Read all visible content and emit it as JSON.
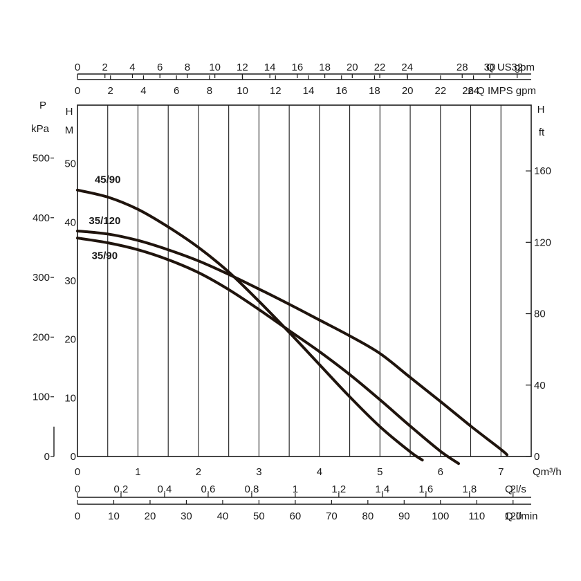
{
  "chart_data": {
    "type": "line",
    "x_main": {
      "unit_label": "Qm³/h",
      "range": [
        0,
        7.5
      ],
      "ticks": [
        0,
        1,
        2,
        3,
        4,
        5,
        6,
        7
      ]
    },
    "y_head_m": {
      "label_top": "H",
      "label_unit": "M",
      "range": [
        0,
        60
      ],
      "ticks": [
        0,
        10,
        20,
        30,
        40,
        50
      ]
    },
    "y_pressure_kpa": {
      "label_top": "P",
      "label_unit": "kPa",
      "ticks": [
        0,
        100,
        200,
        300,
        400,
        500
      ],
      "tick_labels": [
        "0",
        "100",
        "200",
        "300",
        "400",
        "500"
      ]
    },
    "y_head_ft": {
      "label_top": "H",
      "label_unit": "ft",
      "ticks": [
        0,
        40,
        80,
        120,
        160
      ],
      "tick_labels": [
        "0",
        "40",
        "80",
        "120",
        "160"
      ]
    },
    "top_axes": [
      {
        "name": "Q US gpm",
        "unit_label": "Q US gpm",
        "ticks": [
          0,
          2,
          4,
          6,
          8,
          10,
          12,
          14,
          16,
          18,
          20,
          22,
          24,
          28,
          30,
          32
        ],
        "tick_labels": [
          "0",
          "2",
          "4",
          "6",
          "8",
          "10",
          "12",
          "14",
          "16",
          "18",
          "20",
          "22",
          "24",
          "28",
          "30",
          "32"
        ]
      },
      {
        "name": "Q IMPS gpm",
        "unit_label": "26 Q IMPS gpm",
        "ticks": [
          0,
          2,
          4,
          6,
          8,
          10,
          12,
          14,
          16,
          18,
          20,
          22,
          24
        ],
        "tick_labels": [
          "0",
          "2",
          "4",
          "6",
          "8",
          "10",
          "12",
          "14",
          "16",
          "18",
          "20",
          "22",
          "24"
        ]
      }
    ],
    "bottom_axes": [
      {
        "name": "Q l/s",
        "unit_label": "Q l/s",
        "ticks": [
          0,
          0.2,
          0.4,
          0.6,
          0.8,
          1,
          1.2,
          1.4,
          1.6,
          1.8,
          2
        ],
        "tick_labels": [
          "0",
          "0,2",
          "0,4",
          "0,6",
          "0,8",
          "1",
          "1,2",
          "1,4",
          "1,6",
          "1,8",
          "2"
        ]
      },
      {
        "name": "Q l/min",
        "unit_label": "Q l/min",
        "ticks": [
          0,
          10,
          20,
          30,
          40,
          50,
          60,
          70,
          80,
          90,
          100,
          110,
          120
        ],
        "tick_labels": [
          "0",
          "10",
          "20",
          "30",
          "40",
          "50",
          "60",
          "70",
          "80",
          "90",
          "100",
          "110",
          "120"
        ]
      }
    ],
    "series": [
      {
        "name": "45/90",
        "points": [
          [
            0,
            45.5
          ],
          [
            0.5,
            44.3
          ],
          [
            1,
            42.2
          ],
          [
            1.5,
            39.2
          ],
          [
            2,
            35.7
          ],
          [
            2.5,
            31.5
          ],
          [
            3,
            26.5
          ],
          [
            3.5,
            21.2
          ],
          [
            4,
            15.7
          ],
          [
            4.5,
            10.2
          ],
          [
            5,
            5.1
          ],
          [
            5.5,
            0.8
          ],
          [
            5.7,
            -0.6
          ]
        ],
        "label_at": [
          0.5,
          46.7
        ]
      },
      {
        "name": "35/120",
        "points": [
          [
            0,
            38.5
          ],
          [
            0.5,
            38.0
          ],
          [
            1,
            36.9
          ],
          [
            1.5,
            35.3
          ],
          [
            2,
            33.4
          ],
          [
            2.5,
            31.1
          ],
          [
            3,
            28.6
          ],
          [
            3.5,
            26.0
          ],
          [
            4,
            23.3
          ],
          [
            4.5,
            20.6
          ],
          [
            5,
            17.6
          ],
          [
            5.5,
            13.5
          ],
          [
            6,
            9.4
          ],
          [
            6.5,
            5.2
          ],
          [
            7,
            1.2
          ],
          [
            7.1,
            0.3
          ]
        ],
        "label_at": [
          0.45,
          39.7
        ]
      },
      {
        "name": "35/90",
        "points": [
          [
            0,
            37.3
          ],
          [
            0.5,
            36.5
          ],
          [
            1,
            35.3
          ],
          [
            1.5,
            33.6
          ],
          [
            2,
            31.4
          ],
          [
            2.5,
            28.5
          ],
          [
            3,
            25.1
          ],
          [
            3.5,
            21.5
          ],
          [
            4,
            17.9
          ],
          [
            4.5,
            14.0
          ],
          [
            5,
            9.7
          ],
          [
            5.5,
            5.2
          ],
          [
            6,
            0.9
          ],
          [
            6.3,
            -1.2
          ]
        ],
        "label_at": [
          0.45,
          33.7
        ]
      }
    ]
  }
}
